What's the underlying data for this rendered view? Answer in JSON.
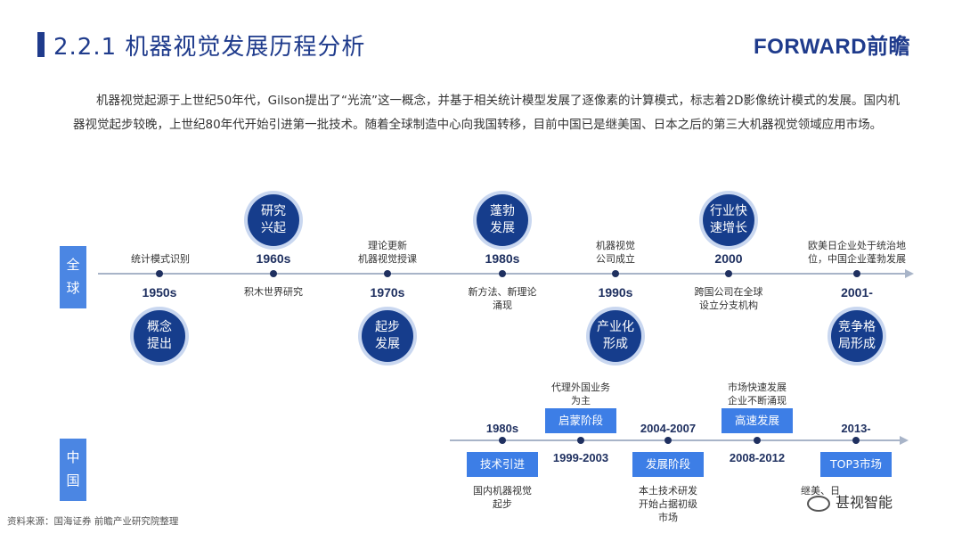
{
  "title": "2.2.1 机器视觉发展历程分析",
  "logo": "FORWARD前瞻",
  "intro": "机器视觉起源于上世纪50年代，Gilson提出了“光流”这一概念，并基于相关统计模型发展了逐像素的计算模式，标志着2D影像统计模式的发展。国内机器视觉起步较晚，上世纪80年代开始引进第一批技术。随着全球制造中心向我国转移，目前中国已是继美国、日本之后的第三大机器视觉领域应用市场。",
  "global": {
    "label": "全\n球",
    "stages": [
      {
        "year": "1950s",
        "event": "统计模式识别",
        "circle": "概念\n提出"
      },
      {
        "year": "1960s",
        "event": "积木世界研究",
        "circle": "研究\n兴起"
      },
      {
        "year": "1970s",
        "event": "理论更新\n机器视觉授课",
        "circle": "起步\n发展"
      },
      {
        "year": "1980s",
        "event": "新方法、新理论\n涌现",
        "circle": "蓬勃\n发展"
      },
      {
        "year": "1990s",
        "event": "机器视觉\n公司成立",
        "circle": "产业化\n形成"
      },
      {
        "year": "2000",
        "event": "跨国公司在全球\n设立分支机构",
        "circle": "行业快\n速增长"
      },
      {
        "year": "2001-",
        "event": "欧美日企业处于统治地\n位，中国企业蓬勃发展",
        "circle": "竞争格\n局形成"
      }
    ]
  },
  "china": {
    "label": "中\n国",
    "stages": [
      {
        "year": "1980s",
        "box": "技术引进",
        "event": "国内机器视觉\n起步"
      },
      {
        "year": "1999-2003",
        "box": "启蒙阶段",
        "event": "代理外国业务\n为主"
      },
      {
        "year": "2004-2007",
        "box": "发展阶段",
        "event": "本土技术研发\n开始占据初级\n市场"
      },
      {
        "year": "2008-2012",
        "box": "高速发展",
        "event": "市场快速发展\n企业不断涌现"
      },
      {
        "year": "2013-",
        "box": "TOP3市场",
        "event": "继美、日"
      }
    ]
  },
  "source": "资料来源：国海证券 前瞻产业研究院整理",
  "watermark": "甚视智能",
  "colors": {
    "primary": "#1f3b8c",
    "band": "#4b86e3",
    "box": "#3d7ee6",
    "circle": "#163d8c"
  }
}
